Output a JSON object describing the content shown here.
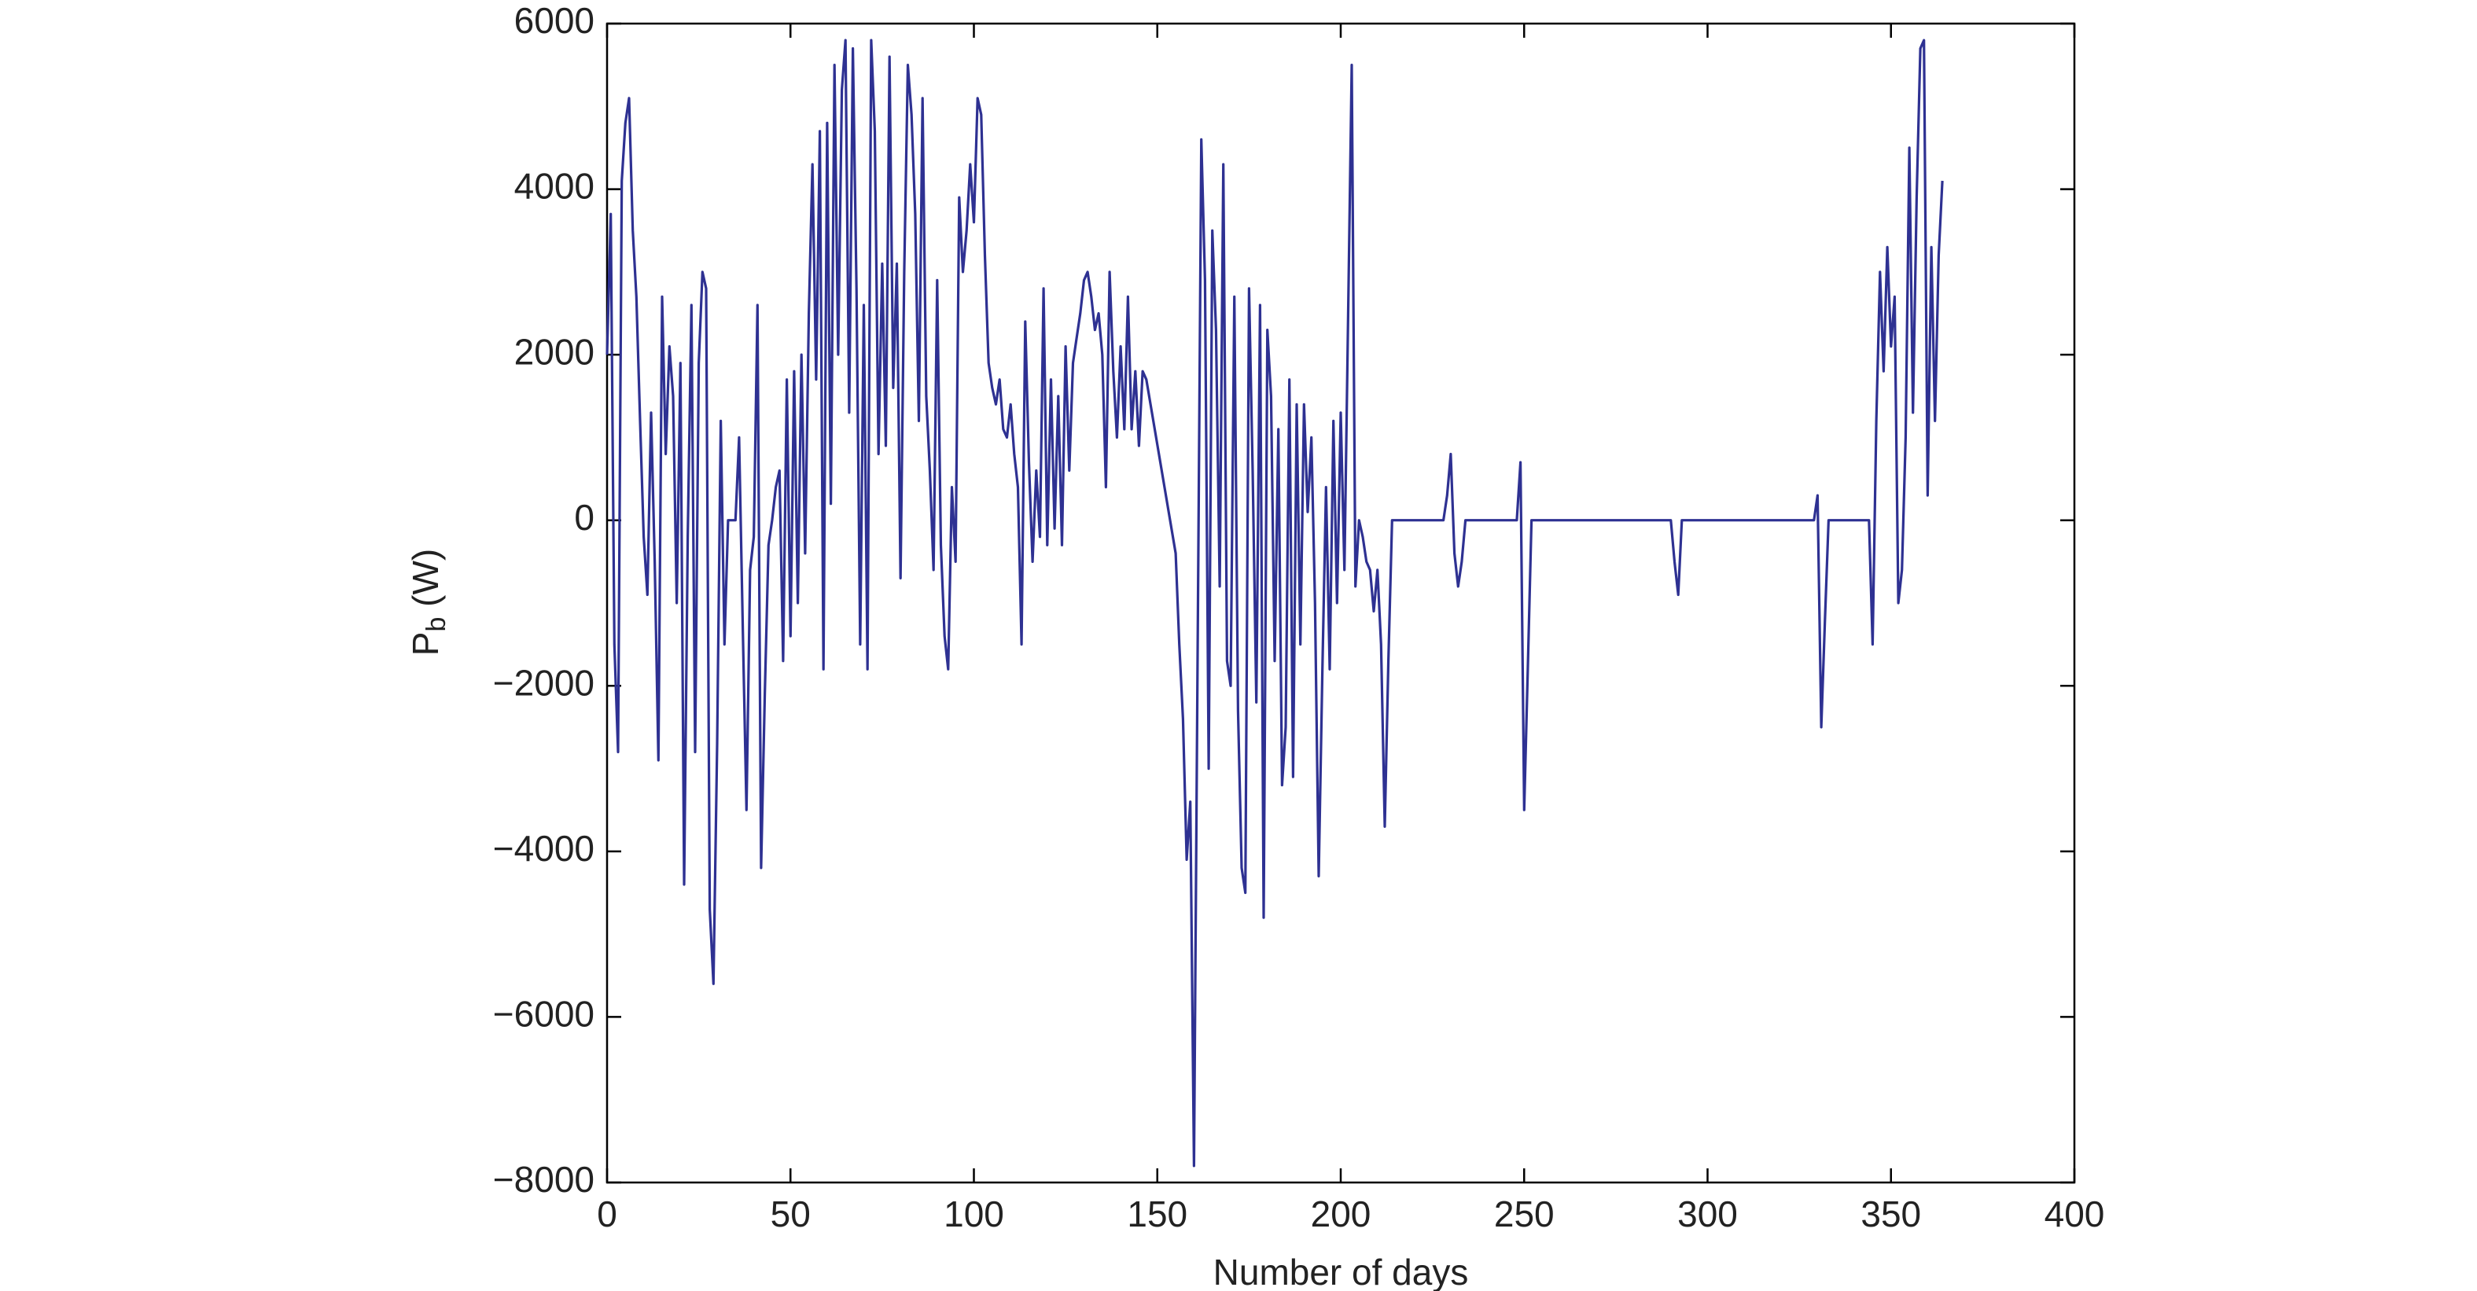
{
  "chart_data": {
    "type": "line",
    "xlabel": "Number of days",
    "ylabel": [
      "P",
      "b",
      " (W)"
    ],
    "xlim": [
      0,
      400
    ],
    "ylim": [
      -8000,
      6000
    ],
    "xticks": [
      0,
      50,
      100,
      150,
      200,
      250,
      300,
      350,
      400
    ],
    "yticks": [
      {
        "value": -8000,
        "label": "−8000"
      },
      {
        "value": -6000,
        "label": "−6000"
      },
      {
        "value": -4000,
        "label": "−4000"
      },
      {
        "value": -2000,
        "label": "−2000"
      },
      0,
      2000,
      4000,
      6000
    ],
    "grid": false,
    "series": [
      {
        "color": "#2e3192",
        "x": [
          0,
          1,
          2,
          3,
          4,
          5,
          6,
          7,
          8,
          9,
          10,
          11,
          12,
          13,
          14,
          15,
          16,
          17,
          18,
          19,
          20,
          21,
          22,
          23,
          24,
          25,
          26,
          27,
          28,
          29,
          30,
          31,
          32,
          33,
          34,
          35,
          36,
          37,
          38,
          39,
          40,
          41,
          42,
          43,
          44,
          45,
          46,
          47,
          48,
          49,
          50,
          51,
          52,
          53,
          54,
          55,
          56,
          57,
          58,
          59,
          60,
          61,
          62,
          63,
          64,
          65,
          66,
          67,
          68,
          69,
          70,
          71,
          72,
          73,
          74,
          75,
          76,
          77,
          78,
          79,
          80,
          81,
          82,
          83,
          84,
          85,
          86,
          87,
          88,
          89,
          90,
          91,
          92,
          93,
          94,
          95,
          96,
          97,
          98,
          99,
          100,
          101,
          102,
          103,
          104,
          105,
          106,
          107,
          108,
          109,
          110,
          111,
          112,
          113,
          114,
          115,
          116,
          117,
          118,
          119,
          120,
          121,
          122,
          123,
          124,
          125,
          126,
          127,
          128,
          129,
          130,
          131,
          132,
          133,
          134,
          135,
          136,
          137,
          138,
          139,
          140,
          141,
          142,
          143,
          144,
          145,
          146,
          147,
          155,
          156,
          157,
          158,
          159,
          160,
          161,
          162,
          163,
          164,
          165,
          166,
          167,
          168,
          169,
          170,
          171,
          172,
          173,
          174,
          175,
          176,
          177,
          178,
          179,
          180,
          181,
          182,
          183,
          184,
          185,
          186,
          187,
          188,
          189,
          190,
          191,
          192,
          193,
          194,
          195,
          196,
          197,
          198,
          199,
          200,
          201,
          202,
          203,
          204,
          205,
          206,
          207,
          208,
          209,
          210,
          211,
          212,
          213,
          214,
          228,
          229,
          230,
          231,
          232,
          233,
          234,
          248,
          249,
          250,
          251,
          252,
          290,
          291,
          292,
          293,
          329,
          330,
          331,
          332,
          333,
          344,
          345,
          346,
          347,
          348,
          349,
          350,
          351,
          352,
          353,
          354,
          355,
          356,
          357,
          358,
          359,
          360,
          361,
          362,
          363,
          364
        ],
        "values": [
          2000,
          3700,
          -1500,
          -2800,
          4100,
          4800,
          5100,
          3500,
          2700,
          1200,
          -200,
          -900,
          1300,
          -500,
          -2900,
          2700,
          800,
          2100,
          1500,
          -1000,
          1900,
          -4400,
          -200,
          2600,
          -2800,
          1900,
          3000,
          2800,
          -4700,
          -5600,
          -2700,
          1200,
          -1500,
          0,
          0,
          0,
          1000,
          -1300,
          -3500,
          -600,
          -200,
          2600,
          -4200,
          -2100,
          -300,
          0,
          400,
          600,
          -1700,
          1700,
          -1400,
          1800,
          -1000,
          2000,
          -400,
          2500,
          4300,
          1700,
          4700,
          -1800,
          4800,
          200,
          5500,
          2000,
          5200,
          5800,
          1300,
          5700,
          2800,
          -1500,
          2600,
          -1800,
          5800,
          4700,
          800,
          3100,
          900,
          5600,
          1600,
          3100,
          -700,
          3000,
          5500,
          4900,
          3700,
          1200,
          5100,
          1500,
          600,
          -600,
          2900,
          -300,
          -1400,
          -1800,
          400,
          -500,
          3900,
          3000,
          3500,
          4300,
          3600,
          5100,
          4900,
          3200,
          1900,
          1600,
          1400,
          1700,
          1100,
          1000,
          1400,
          800,
          400,
          -1500,
          2400,
          700,
          -500,
          600,
          -200,
          2800,
          -300,
          1700,
          -100,
          1500,
          -300,
          2100,
          600,
          1900,
          2200,
          2500,
          2900,
          3000,
          2700,
          2300,
          2500,
          2000,
          400,
          3000,
          1800,
          1000,
          2100,
          1100,
          2700,
          1100,
          1800,
          900,
          1800,
          1700,
          -400,
          -1500,
          -2400,
          -4100,
          -3400,
          -7800,
          -1500,
          4600,
          2900,
          -3000,
          3500,
          2300,
          -800,
          4300,
          -1700,
          -2000,
          2700,
          -2300,
          -4200,
          -4500,
          2800,
          600,
          -2200,
          2600,
          -4800,
          2300,
          1500,
          -1700,
          1100,
          -3200,
          -2500,
          1700,
          -3100,
          1400,
          -1500,
          1400,
          100,
          1000,
          -1000,
          -4300,
          -1800,
          400,
          -1800,
          1200,
          -1000,
          1300,
          -600,
          2400,
          5500,
          -800,
          0,
          -200,
          -500,
          -600,
          -1100,
          -600,
          -1500,
          -3700,
          -1700,
          0,
          0,
          300,
          800,
          -400,
          -800,
          -500,
          0,
          0,
          700,
          -3500,
          -1800,
          0,
          0,
          -500,
          -900,
          0,
          0,
          300,
          -2500,
          -1200,
          0,
          0,
          -1500,
          1200,
          3000,
          1800,
          3300,
          2100,
          2700,
          -1000,
          -600,
          1000,
          4500,
          1300,
          3900,
          5700,
          5800,
          300,
          3300,
          1200,
          3200,
          4100
        ]
      }
    ]
  }
}
